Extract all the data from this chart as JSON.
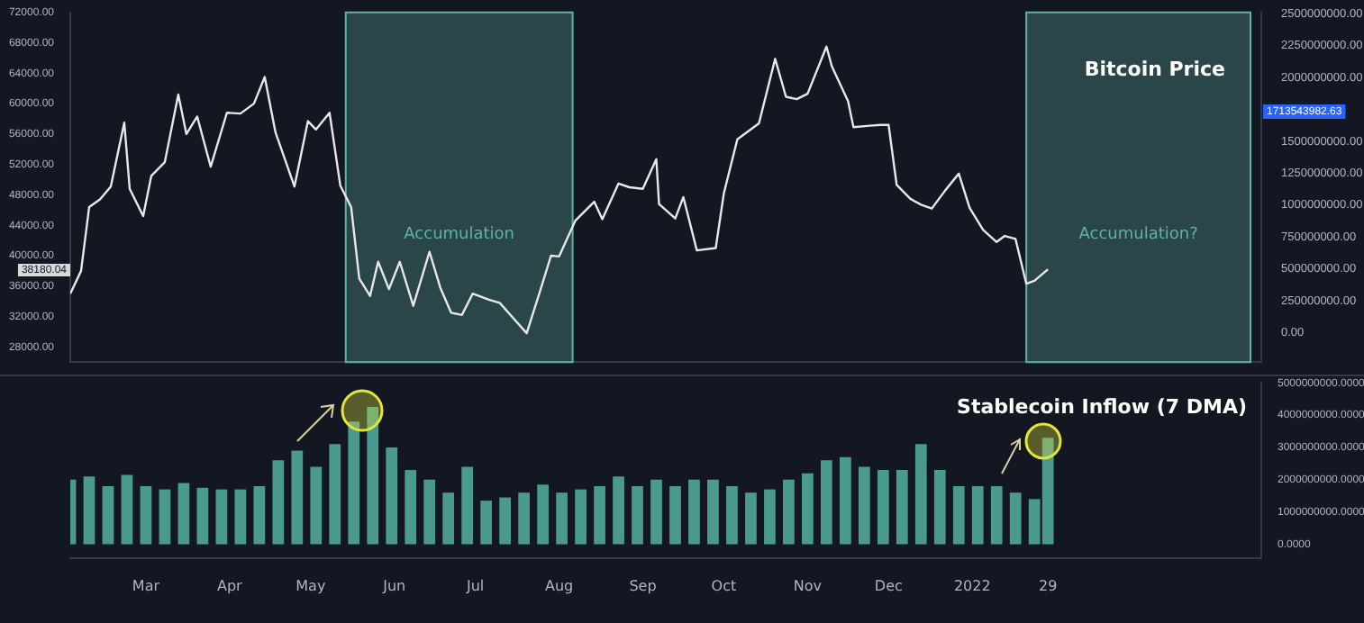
{
  "chart_data": [
    {
      "type": "line",
      "title": "Bitcoin Price",
      "tick_labels": "y",
      "xlim": [
        "2021-02-01",
        "2022-04-18"
      ],
      "ylim": [
        26000,
        72000
      ],
      "yticks": [
        {
          "value": 28000,
          "label": "28000.00"
        },
        {
          "value": 32000,
          "label": "32000.00"
        },
        {
          "value": 36000,
          "label": "36000.00"
        },
        {
          "value": 40000,
          "label": "40000.00"
        },
        {
          "value": 44000,
          "label": "44000.00"
        },
        {
          "value": 48000,
          "label": "48000.00"
        },
        {
          "value": 52000,
          "label": "52000.00"
        },
        {
          "value": 56000,
          "label": "56000.00"
        },
        {
          "value": 60000,
          "label": "60000.00"
        },
        {
          "value": 64000,
          "label": "64000.00"
        },
        {
          "value": 68000,
          "label": "68000.00"
        },
        {
          "value": 72000,
          "label": "72000.00"
        }
      ],
      "y2lim": [
        -230000000,
        2510000000
      ],
      "y2ticks": [
        {
          "value": 0,
          "label": "0.00"
        },
        {
          "value": 250000000,
          "label": "250000000.00"
        },
        {
          "value": 500000000,
          "label": "500000000.00"
        },
        {
          "value": 750000000,
          "label": "750000000.00"
        },
        {
          "value": 1000000000,
          "label": "1000000000.00"
        },
        {
          "value": 1250000000,
          "label": "1250000000.00"
        },
        {
          "value": 1500000000,
          "label": "1500000000.00"
        },
        {
          "value": 2000000000,
          "label": "2000000000.00"
        },
        {
          "value": 2250000000,
          "label": "2250000000.00"
        },
        {
          "value": 2500000000,
          "label": "2500000000.00"
        }
      ],
      "series": [
        {
          "color": "#e8e8e8",
          "x": [
            "2021-02-01",
            "2021-02-05",
            "2021-02-08",
            "2021-02-12",
            "2021-02-16",
            "2021-02-21",
            "2021-02-23",
            "2021-02-28",
            "2021-03-03",
            "2021-03-08",
            "2021-03-13",
            "2021-03-16",
            "2021-03-20",
            "2021-03-25",
            "2021-03-31",
            "2021-04-05",
            "2021-04-10",
            "2021-04-14",
            "2021-04-18",
            "2021-04-25",
            "2021-04-30",
            "2021-05-03",
            "2021-05-08",
            "2021-05-12",
            "2021-05-16",
            "2021-05-19",
            "2021-05-23",
            "2021-05-26",
            "2021-05-30",
            "2021-06-03",
            "2021-06-08",
            "2021-06-14",
            "2021-06-18",
            "2021-06-22",
            "2021-06-26",
            "2021-06-30",
            "2021-07-06",
            "2021-07-10",
            "2021-07-15",
            "2021-07-20",
            "2021-07-25",
            "2021-07-29",
            "2021-08-01",
            "2021-08-07",
            "2021-08-14",
            "2021-08-17",
            "2021-08-23",
            "2021-08-27",
            "2021-09-01",
            "2021-09-06",
            "2021-09-07",
            "2021-09-13",
            "2021-09-16",
            "2021-09-21",
            "2021-09-28",
            "2021-10-01",
            "2021-10-06",
            "2021-10-14",
            "2021-10-20",
            "2021-10-24",
            "2021-10-28",
            "2021-11-01",
            "2021-11-08",
            "2021-11-10",
            "2021-11-16",
            "2021-11-18",
            "2021-11-24",
            "2021-11-28",
            "2021-12-01",
            "2021-12-04",
            "2021-12-09",
            "2021-12-13",
            "2021-12-17",
            "2021-12-22",
            "2021-12-27",
            "2021-12-31",
            "2022-01-05",
            "2022-01-10",
            "2022-01-13",
            "2022-01-17",
            "2022-01-21",
            "2022-01-24",
            "2022-01-29"
          ],
          "values": [
            35000,
            38000,
            46400,
            47400,
            49100,
            57500,
            48800,
            45200,
            50500,
            52300,
            61200,
            56000,
            58300,
            51700,
            58800,
            58700,
            60000,
            63500,
            56200,
            49100,
            57700,
            56600,
            58800,
            49200,
            46400,
            37000,
            34700,
            39200,
            35600,
            39200,
            33400,
            40500,
            35800,
            32500,
            32200,
            35000,
            34200,
            33800,
            31800,
            29800,
            35400,
            40000,
            39900,
            44600,
            47100,
            44800,
            49500,
            49000,
            48800,
            52700,
            46800,
            44900,
            47700,
            40700,
            41000,
            48200,
            55300,
            57400,
            65900,
            60900,
            60600,
            61300,
            67500,
            64900,
            60300,
            56900,
            57100,
            57200,
            57200,
            49300,
            47500,
            46700,
            46200,
            48600,
            50800,
            46300,
            43400,
            41800,
            42600,
            42200,
            36300,
            36700,
            38200
          ]
        }
      ],
      "annotations": [
        "38180.04",
        "1713543982.63"
      ],
      "bands": [
        {
          "axis": "x",
          "from": "2021-05-14",
          "to": "2021-08-06",
          "label": "Accumulation",
          "color": "#5fb3a6"
        },
        {
          "axis": "x",
          "from": "2022-01-21",
          "to": "2022-04-14",
          "label": "Accumulation?",
          "color": "#5fb3a6"
        }
      ]
    },
    {
      "type": "bar",
      "title": "Stablecoin Inflow (7 DMA)",
      "xlim": [
        "2021-02-01",
        "2022-04-18"
      ],
      "xticks": [
        {
          "value": "2021-03-01",
          "label": "Mar"
        },
        {
          "value": "2021-04-01",
          "label": "Apr"
        },
        {
          "value": "2021-05-01",
          "label": "May"
        },
        {
          "value": "2021-06-01",
          "label": "Jun"
        },
        {
          "value": "2021-07-01",
          "label": "Jul"
        },
        {
          "value": "2021-08-01",
          "label": "Aug"
        },
        {
          "value": "2021-09-01",
          "label": "Sep"
        },
        {
          "value": "2021-10-01",
          "label": "Oct"
        },
        {
          "value": "2021-11-01",
          "label": "Nov"
        },
        {
          "value": "2021-12-01",
          "label": "Dec"
        },
        {
          "value": "2022-01-01",
          "label": "2022"
        },
        {
          "value": "2022-01-29",
          "label": "29"
        }
      ],
      "ylim": [
        -430000000,
        5000000000
      ],
      "yticks": [
        {
          "value": 0,
          "label": "0.0000"
        },
        {
          "value": 1000000000,
          "label": "1000000000.0000"
        },
        {
          "value": 2000000000,
          "label": "2000000000.0000"
        },
        {
          "value": 3000000000,
          "label": "3000000000.0000"
        },
        {
          "value": 4000000000,
          "label": "4000000000.0000"
        },
        {
          "value": 5000000000,
          "label": "5000000000.0000"
        }
      ],
      "series": [
        {
          "color": "#4a9a8f",
          "x": [
            "2021-02-01",
            "2021-02-08",
            "2021-02-15",
            "2021-02-22",
            "2021-03-01",
            "2021-03-08",
            "2021-03-15",
            "2021-03-22",
            "2021-03-29",
            "2021-04-05",
            "2021-04-12",
            "2021-04-19",
            "2021-04-26",
            "2021-05-03",
            "2021-05-10",
            "2021-05-17",
            "2021-05-24",
            "2021-05-31",
            "2021-06-07",
            "2021-06-14",
            "2021-06-21",
            "2021-06-28",
            "2021-07-05",
            "2021-07-12",
            "2021-07-19",
            "2021-07-26",
            "2021-08-02",
            "2021-08-09",
            "2021-08-16",
            "2021-08-23",
            "2021-08-30",
            "2021-09-06",
            "2021-09-13",
            "2021-09-20",
            "2021-09-27",
            "2021-10-04",
            "2021-10-11",
            "2021-10-18",
            "2021-10-25",
            "2021-11-01",
            "2021-11-08",
            "2021-11-15",
            "2021-11-22",
            "2021-11-29",
            "2021-12-06",
            "2021-12-13",
            "2021-12-20",
            "2021-12-27",
            "2022-01-03",
            "2022-01-10",
            "2022-01-17",
            "2022-01-24",
            "2022-01-29"
          ],
          "values": [
            2000000000,
            2100000000,
            1800000000,
            2150000000,
            1800000000,
            1700000000,
            1900000000,
            1750000000,
            1700000000,
            1700000000,
            1800000000,
            2600000000,
            2900000000,
            2400000000,
            3100000000,
            3800000000,
            4250000000,
            3000000000,
            2300000000,
            2000000000,
            1600000000,
            2400000000,
            1350000000,
            1450000000,
            1600000000,
            1850000000,
            1600000000,
            1700000000,
            1800000000,
            2100000000,
            1800000000,
            2000000000,
            1800000000,
            2000000000,
            2000000000,
            1800000000,
            1600000000,
            1700000000,
            2000000000,
            2200000000,
            2600000000,
            2700000000,
            2400000000,
            2300000000,
            2300000000,
            3100000000,
            2300000000,
            1800000000,
            1800000000,
            1800000000,
            1600000000,
            1400000000,
            3300000000
          ]
        }
      ]
    }
  ]
}
